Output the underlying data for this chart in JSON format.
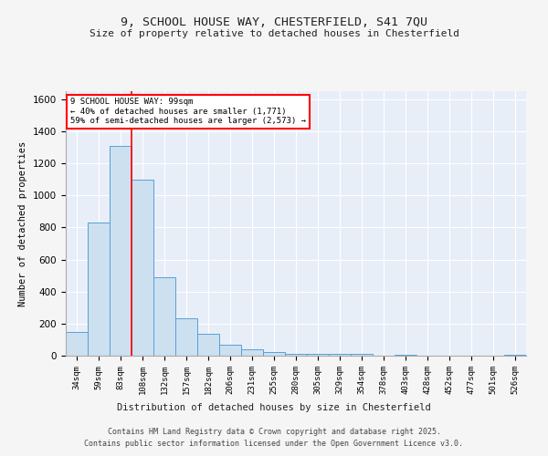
{
  "title_line1": "9, SCHOOL HOUSE WAY, CHESTERFIELD, S41 7QU",
  "title_line2": "Size of property relative to detached houses in Chesterfield",
  "xlabel": "Distribution of detached houses by size in Chesterfield",
  "ylabel": "Number of detached properties",
  "bar_labels": [
    "34sqm",
    "59sqm",
    "83sqm",
    "108sqm",
    "132sqm",
    "157sqm",
    "182sqm",
    "206sqm",
    "231sqm",
    "255sqm",
    "280sqm",
    "305sqm",
    "329sqm",
    "354sqm",
    "378sqm",
    "403sqm",
    "428sqm",
    "452sqm",
    "477sqm",
    "501sqm",
    "526sqm"
  ],
  "bar_values": [
    150,
    830,
    1310,
    1100,
    490,
    235,
    135,
    70,
    38,
    23,
    10,
    10,
    10,
    10,
    2,
    5,
    0,
    0,
    0,
    0,
    8
  ],
  "bar_color": "#cce0f0",
  "bar_edge_color": "#5a9fd4",
  "bg_color": "#e8eef8",
  "grid_color": "#ffffff",
  "red_line_x": 2.5,
  "annotation_title": "9 SCHOOL HOUSE WAY: 99sqm",
  "annotation_line1": "← 40% of detached houses are smaller (1,771)",
  "annotation_line2": "59% of semi-detached houses are larger (2,573) →",
  "ylim": [
    0,
    1650
  ],
  "yticks": [
    0,
    200,
    400,
    600,
    800,
    1000,
    1200,
    1400,
    1600
  ],
  "footer_line1": "Contains HM Land Registry data © Crown copyright and database right 2025.",
  "footer_line2": "Contains public sector information licensed under the Open Government Licence v3.0.",
  "fig_bg": "#f5f5f5"
}
